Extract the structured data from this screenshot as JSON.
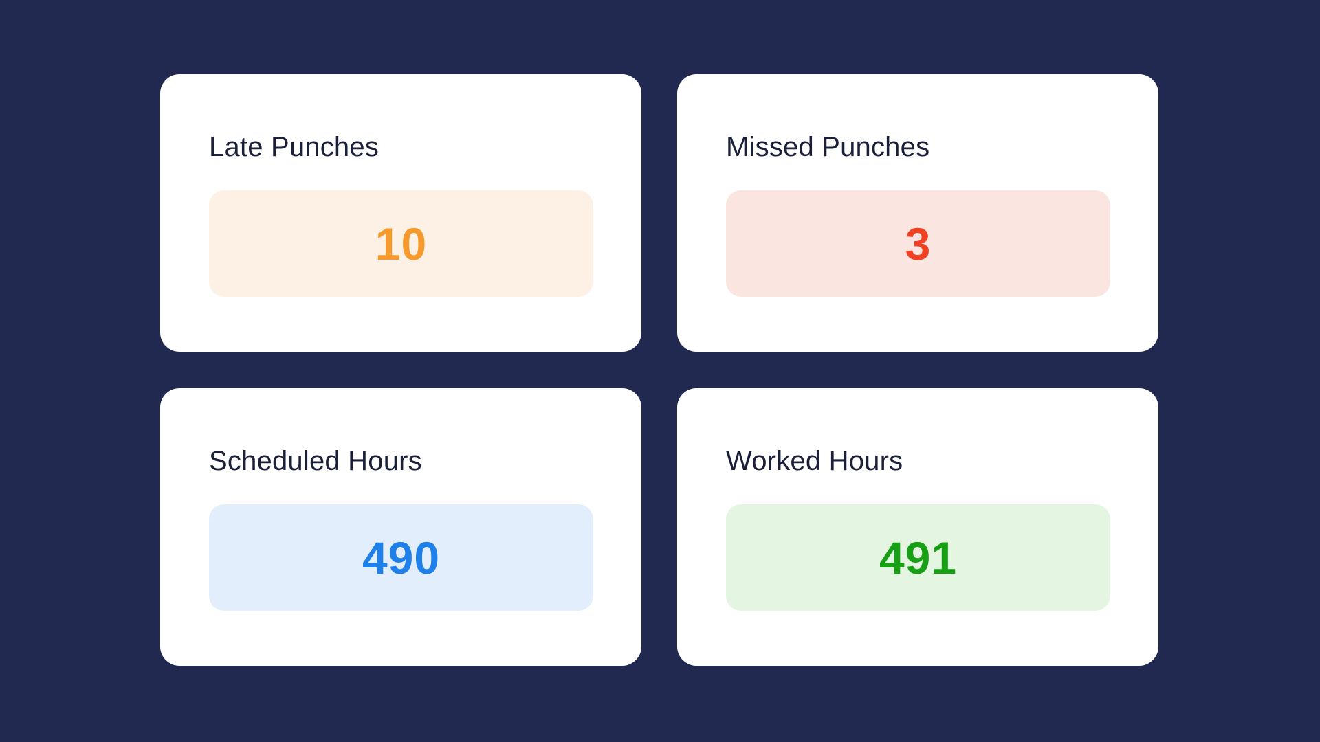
{
  "page": {
    "background_color": "#212950",
    "card_background": "#ffffff",
    "title_color": "#1a2038"
  },
  "cards": [
    {
      "title": "Late Punches",
      "value": "10",
      "value_color": "#f79a2d",
      "badge_bg": "#fdf0e4"
    },
    {
      "title": "Missed Punches",
      "value": "3",
      "value_color": "#f04123",
      "badge_bg": "#fbe5e1"
    },
    {
      "title": "Scheduled Hours",
      "value": "490",
      "value_color": "#1f80e9",
      "badge_bg": "#e2eefb"
    },
    {
      "title": "Worked Hours",
      "value": "491",
      "value_color": "#17a015",
      "badge_bg": "#e4f6e2"
    }
  ]
}
